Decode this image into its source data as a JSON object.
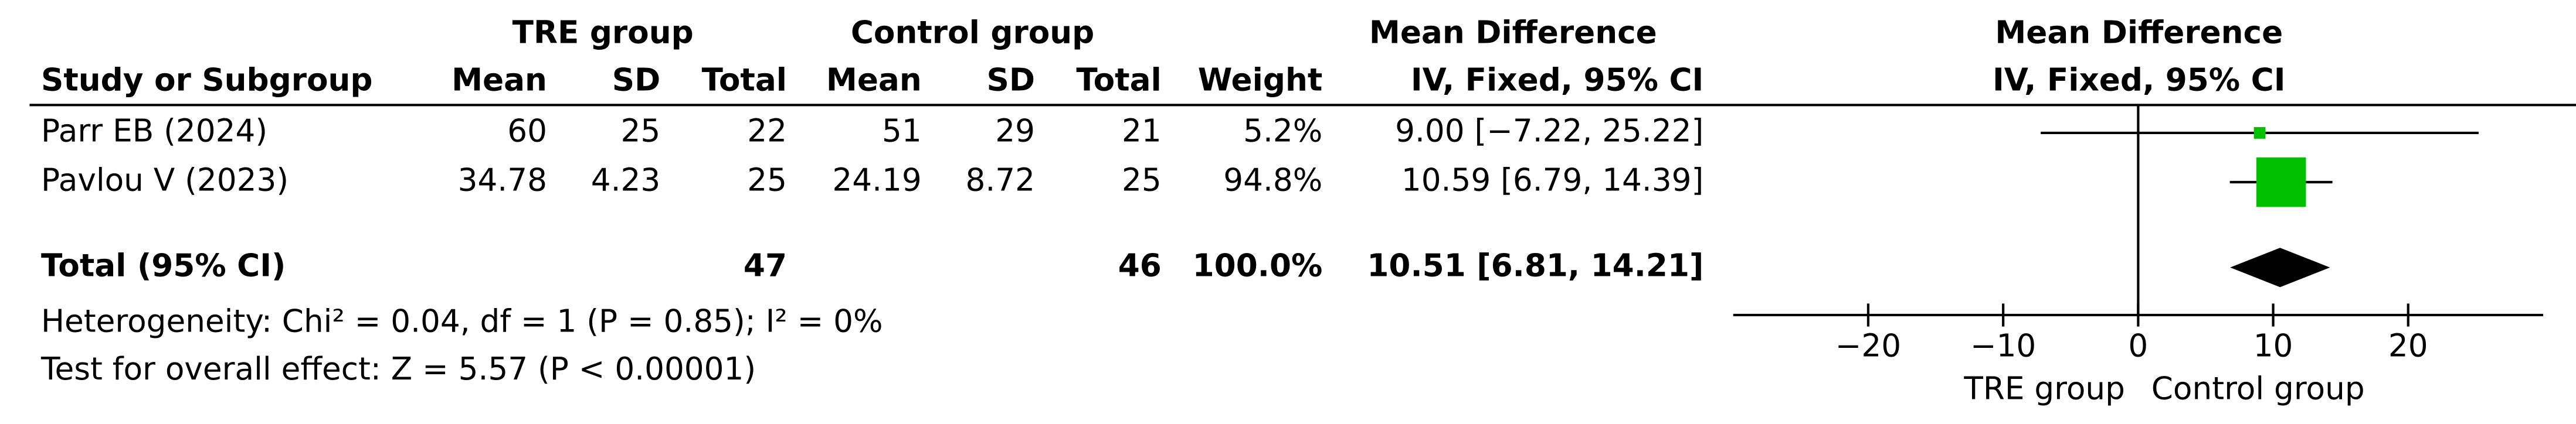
{
  "chart_data": {
    "type": "forest",
    "group_headers": [
      "TRE group",
      "Control group"
    ],
    "effect_header": "Mean Difference",
    "effect_subheader": "IV, Fixed, 95% CI",
    "columns": [
      "Study or Subgroup",
      "Mean",
      "SD",
      "Total",
      "Mean",
      "SD",
      "Total",
      "Weight",
      "IV, Fixed, 95% CI"
    ],
    "studies": [
      {
        "name": "Parr EB (2024)",
        "tre_mean": 60,
        "tre_sd": 25,
        "tre_total": 22,
        "ctrl_mean": 51,
        "ctrl_sd": 29,
        "ctrl_total": 21,
        "weight": 5.2,
        "weight_label": "5.2%",
        "md": 9.0,
        "ci_low": -7.22,
        "ci_high": 25.22,
        "effect_label": "9.00 [−7.22, 25.22]"
      },
      {
        "name": "Pavlou V (2023)",
        "tre_mean": 34.78,
        "tre_sd": 4.23,
        "tre_total": 25,
        "ctrl_mean": 24.19,
        "ctrl_sd": 8.72,
        "ctrl_total": 25,
        "weight": 94.8,
        "weight_label": "94.8%",
        "md": 10.59,
        "ci_low": 6.79,
        "ci_high": 14.39,
        "effect_label": "10.59 [6.79, 14.39]"
      }
    ],
    "total": {
      "name": "Total (95% CI)",
      "tre_total": 47,
      "ctrl_total": 46,
      "weight": 100,
      "weight_label": "100.0%",
      "md": 10.51,
      "ci_low": 6.81,
      "ci_high": 14.21,
      "effect_label": "10.51 [6.81, 14.21]"
    },
    "heterogeneity": "Heterogeneity: Chi² = 0.04, df = 1 (P = 0.85); I² = 0%",
    "overall_effect": "Test for overall effect: Z = 5.57 (P < 0.00001)",
    "plot_header": "Mean Difference",
    "plot_subheader": "IV, Fixed, 95% CI",
    "xlim": [
      -30,
      30
    ],
    "xticks": [
      {
        "value": -20,
        "label": "−20"
      },
      {
        "value": -10,
        "label": "−10"
      },
      0,
      10,
      20
    ],
    "favours": [
      "TRE group",
      "Control group"
    ],
    "color": "#00c000",
    "total_color": "#000000"
  }
}
